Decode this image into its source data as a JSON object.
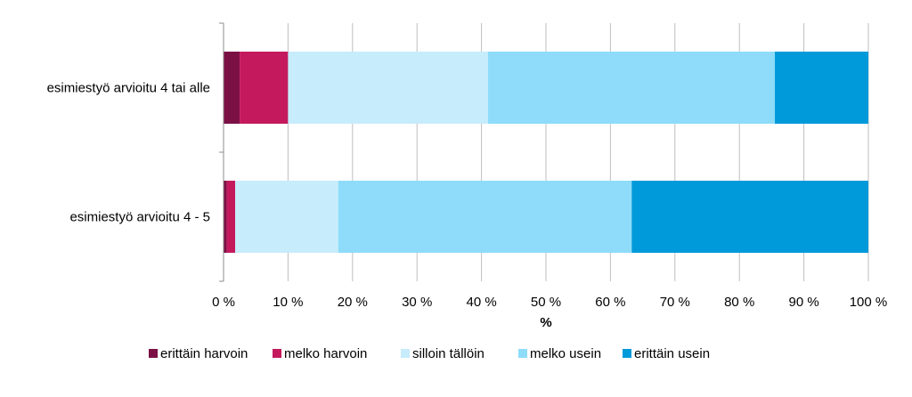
{
  "chart_data": {
    "type": "bar",
    "orientation": "horizontal",
    "stacked": "percent",
    "title": "",
    "xlabel": "%",
    "ylabel": "",
    "xlim": [
      0,
      100
    ],
    "x_ticks": [
      "0 %",
      "10 %",
      "20 %",
      "30 %",
      "40 %",
      "50 %",
      "60 %",
      "70 %",
      "80 %",
      "90 %",
      "100 %"
    ],
    "grid": "vertical",
    "legend_position": "bottom",
    "categories": [
      "esimiestyö arvioitu 4 tai alle",
      "esimiestyö arvioitu 4 - 5"
    ],
    "series": [
      {
        "name": "erittäin harvoin",
        "color": "#7b1045",
        "values": [
          2.5,
          0.5
        ]
      },
      {
        "name": "melko harvoin",
        "color": "#c41a5d",
        "values": [
          7.5,
          1.3
        ]
      },
      {
        "name": "silloin tällöin",
        "color": "#c7ecfb",
        "values": [
          31,
          16
        ]
      },
      {
        "name": "melko usein",
        "color": "#8edcfa",
        "values": [
          44.5,
          45.5
        ]
      },
      {
        "name": "erittäin usein",
        "color": "#009ada",
        "values": [
          14.5,
          36.7
        ]
      }
    ]
  }
}
